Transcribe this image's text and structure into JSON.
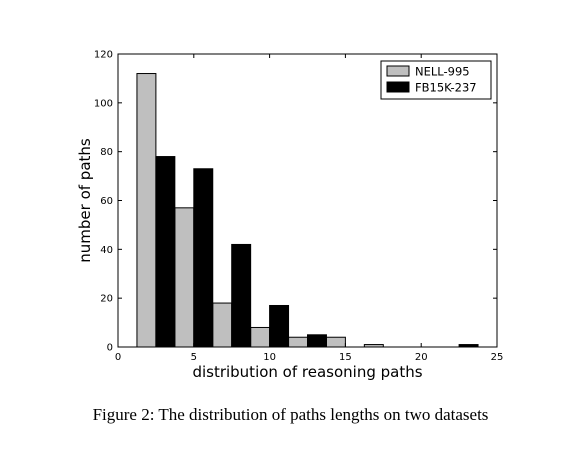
{
  "caption": "Figure 2: The distribution of paths lengths on two datasets",
  "chart_data": {
    "type": "bar",
    "x_bin_centers": [
      2.5,
      5,
      7.5,
      10,
      12.5,
      15,
      17.5,
      20,
      22.5
    ],
    "series": [
      {
        "name": "NELL-995",
        "color": "#bfbfbf",
        "values": [
          112,
          57,
          18,
          8,
          4,
          4,
          1,
          0,
          0
        ]
      },
      {
        "name": "FB15K-237",
        "color": "#000000",
        "values": [
          78,
          73,
          42,
          17,
          5,
          0,
          0,
          0,
          1
        ]
      }
    ],
    "xlabel": "distribution of reasoning paths",
    "ylabel": "number of paths",
    "xlim": [
      0,
      25
    ],
    "ylim": [
      0,
      120
    ],
    "xticks": [
      0,
      5,
      10,
      15,
      20,
      25
    ],
    "yticks": [
      0,
      20,
      40,
      60,
      80,
      100,
      120
    ],
    "grid": false,
    "legend_position": "top-right"
  }
}
